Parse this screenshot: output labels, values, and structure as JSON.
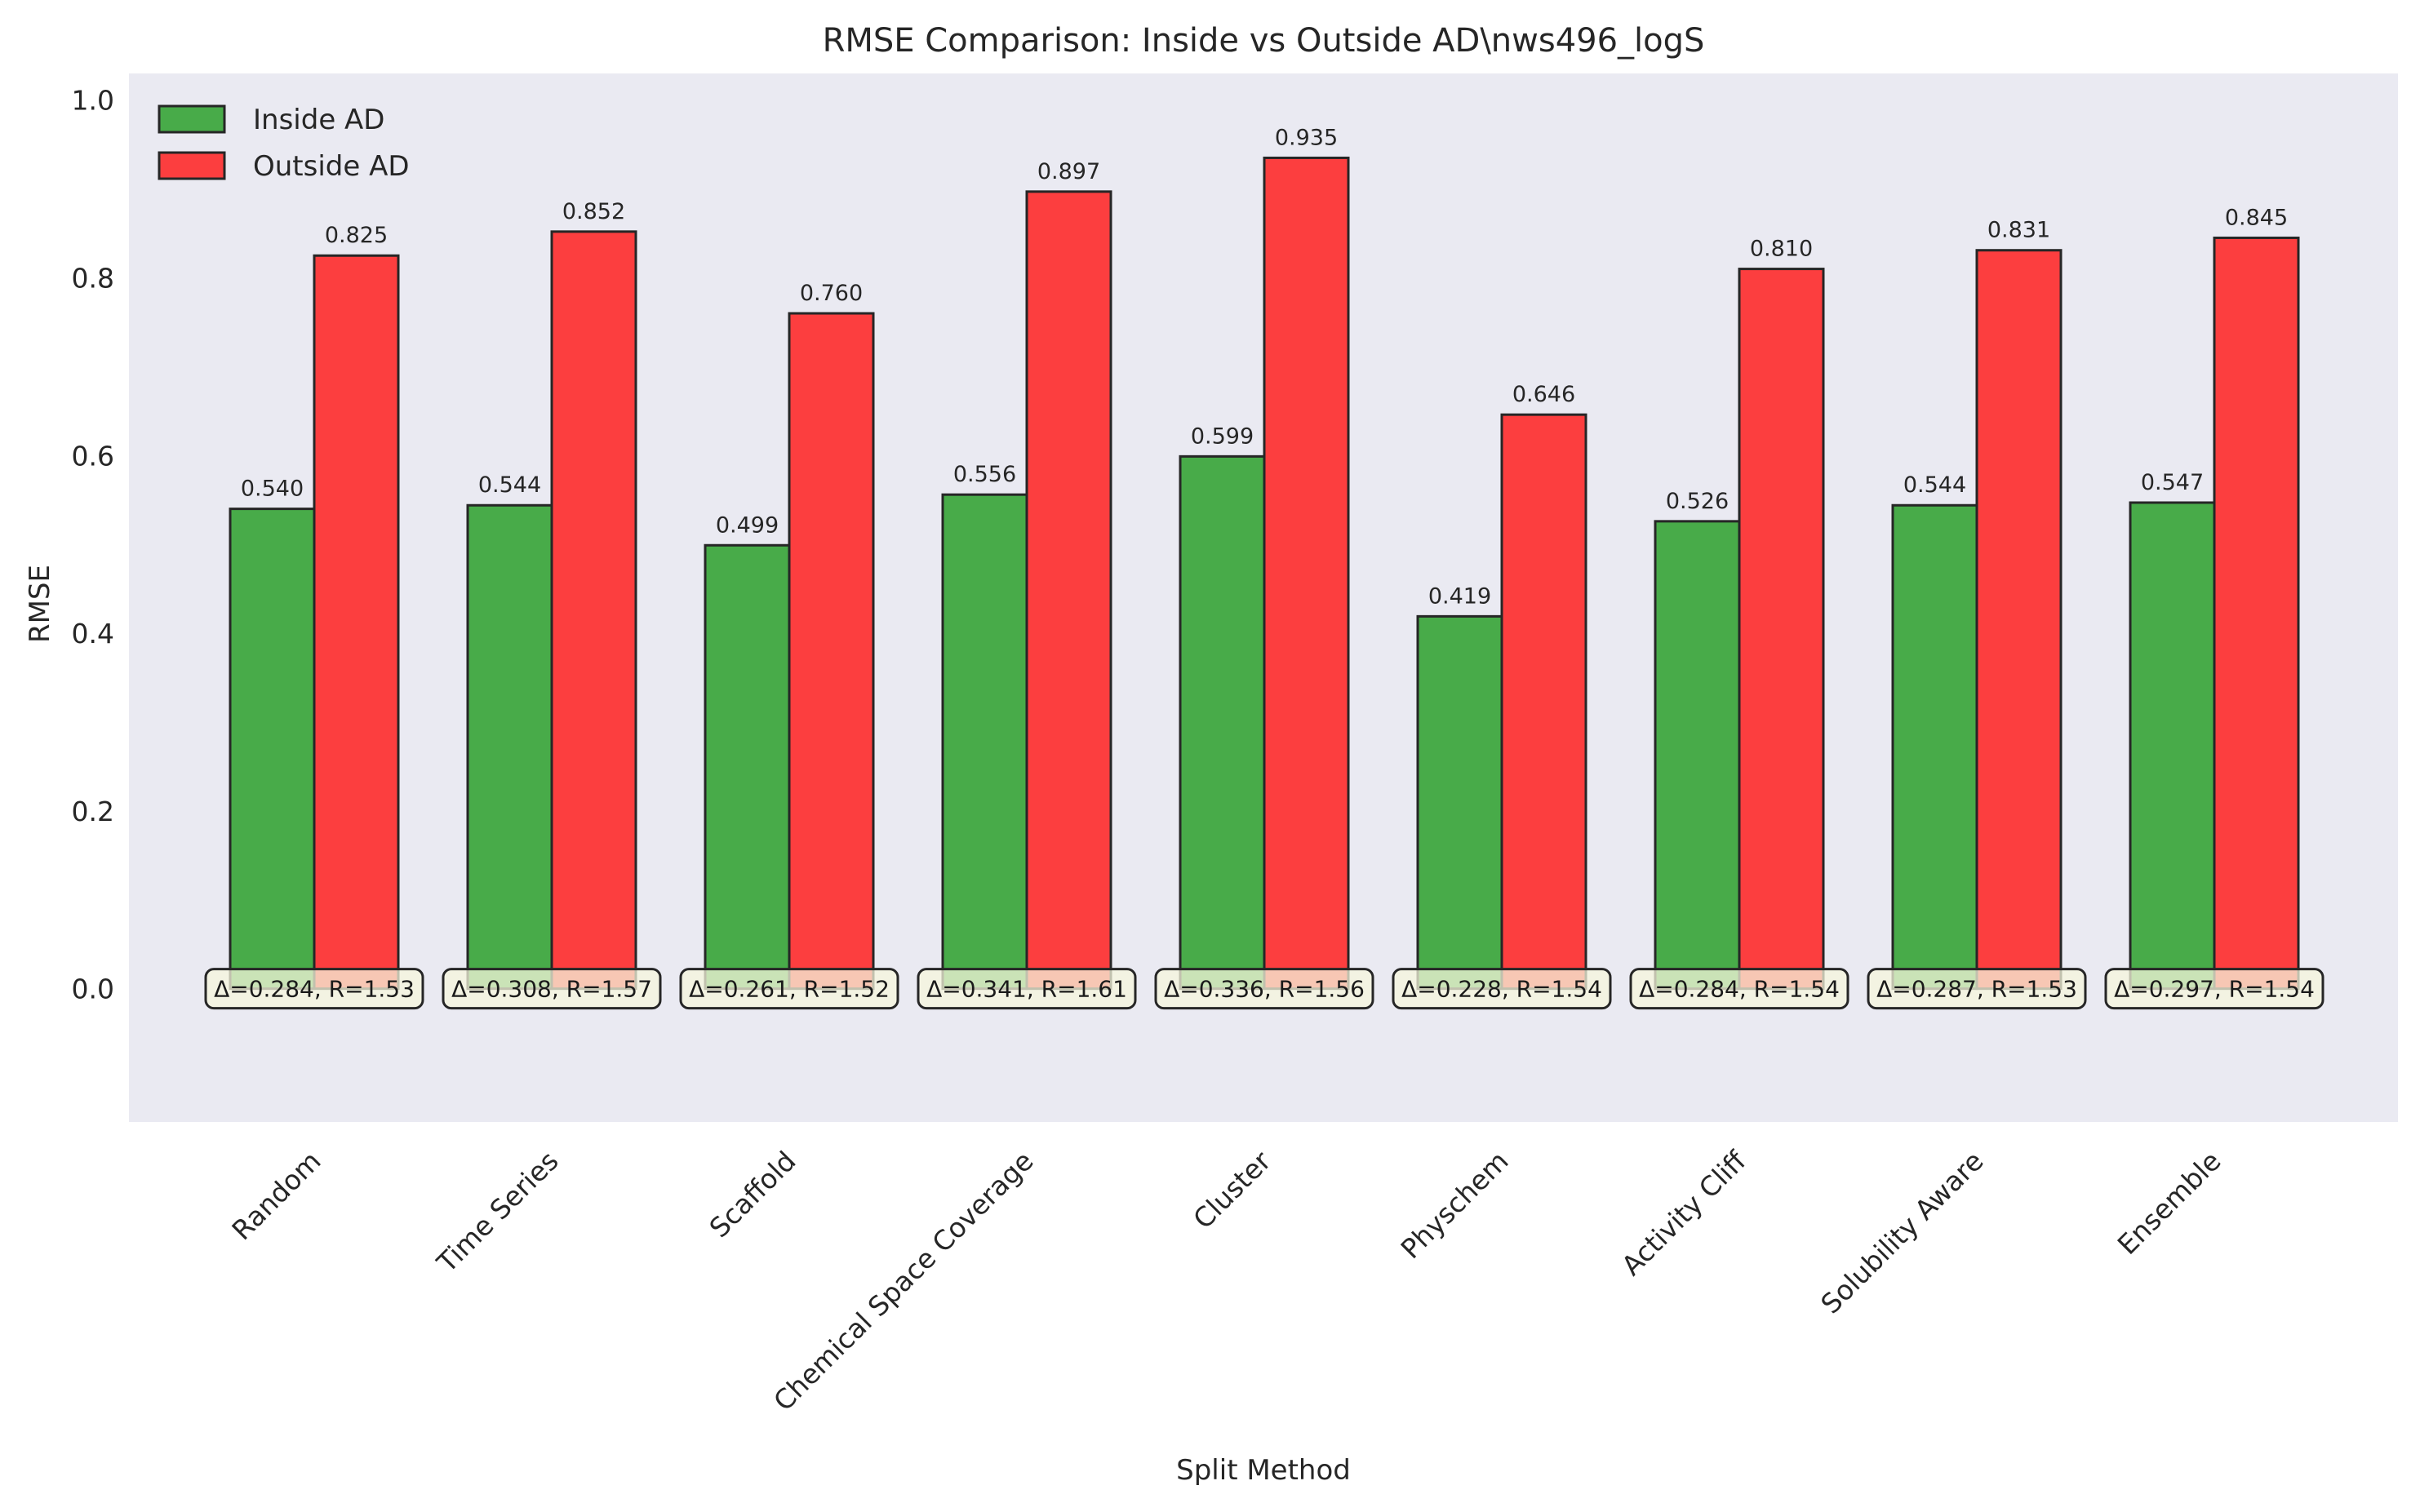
{
  "chart_data": {
    "type": "bar",
    "title": "RMSE Comparison: Inside vs Outside AD\\nws496_logS",
    "xlabel": "Split Method",
    "ylabel": "RMSE",
    "ylim": [
      -0.15,
      1.03
    ],
    "yticks": [
      "0.0",
      "0.2",
      "0.4",
      "0.6",
      "0.8",
      "1.0"
    ],
    "grid": false,
    "legend_position": "top-left",
    "categories": [
      "Random",
      "Time Series",
      "Scaffold",
      "Chemical Space Coverage",
      "Cluster",
      "Physchem",
      "Activity Cliff",
      "Solubility Aware",
      "Ensemble"
    ],
    "series": [
      {
        "name": "Inside AD",
        "color": "#2ca02c",
        "values": [
          0.54,
          0.544,
          0.499,
          0.556,
          0.599,
          0.419,
          0.526,
          0.544,
          0.547
        ],
        "labels": [
          "0.540",
          "0.544",
          "0.499",
          "0.556",
          "0.599",
          "0.419",
          "0.526",
          "0.544",
          "0.547"
        ]
      },
      {
        "name": "Outside AD",
        "color": "#ff2020",
        "values": [
          0.825,
          0.852,
          0.76,
          0.897,
          0.935,
          0.646,
          0.81,
          0.831,
          0.845
        ],
        "labels": [
          "0.825",
          "0.852",
          "0.760",
          "0.897",
          "0.935",
          "0.646",
          "0.810",
          "0.831",
          "0.845"
        ]
      }
    ],
    "annotations": [
      "Δ=0.284, R=1.53",
      "Δ=0.308, R=1.57",
      "Δ=0.261, R=1.52",
      "Δ=0.341, R=1.61",
      "Δ=0.336, R=1.56",
      "Δ=0.228, R=1.54",
      "Δ=0.284, R=1.54",
      "Δ=0.287, R=1.53",
      "Δ=0.297, R=1.54"
    ],
    "colors": {
      "plot_background": "#eaeaf2",
      "bar_edge": "#262626",
      "annotation_fill": "#f5f5dc"
    }
  }
}
